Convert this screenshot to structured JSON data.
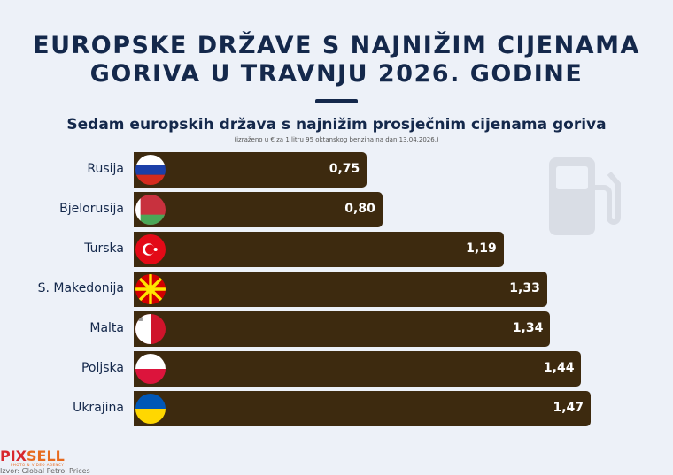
{
  "title_line1": "EUROPSKE DRŽAVE S NAJNIŽIM CIJENAMA",
  "title_line2": "GORIVA U TRAVNJU 2026. GODINE",
  "footer": {
    "logo": "PIXSELL",
    "agency": "PHOTO & VIDEO AGENCY",
    "source": "Izvor: Global Petrol Prices"
  },
  "chart_data": {
    "type": "bar",
    "orientation": "horizontal",
    "title": "Sedam europskih država s najnižim prosječnim cijenama goriva",
    "subtitle": "(izraženo u € za 1 litru 95 oktanskog benzina na dan 13.04.2026.)",
    "categories": [
      "Rusija",
      "Bjelorusija",
      "Turska",
      "S. Makedonija",
      "Malta",
      "Poljska",
      "Ukrajina"
    ],
    "labels": [
      "0,75",
      "0,80",
      "1,19",
      "1,33",
      "1,34",
      "1,44",
      "1,47"
    ],
    "values": [
      0.75,
      0.8,
      1.19,
      1.33,
      1.34,
      1.44,
      1.47
    ],
    "flags": [
      "russia",
      "belarus",
      "turkey",
      "north-macedonia",
      "malta",
      "poland",
      "ukraine"
    ],
    "bar_color": "#3d2a0f",
    "xlim": [
      0,
      1.47
    ]
  }
}
